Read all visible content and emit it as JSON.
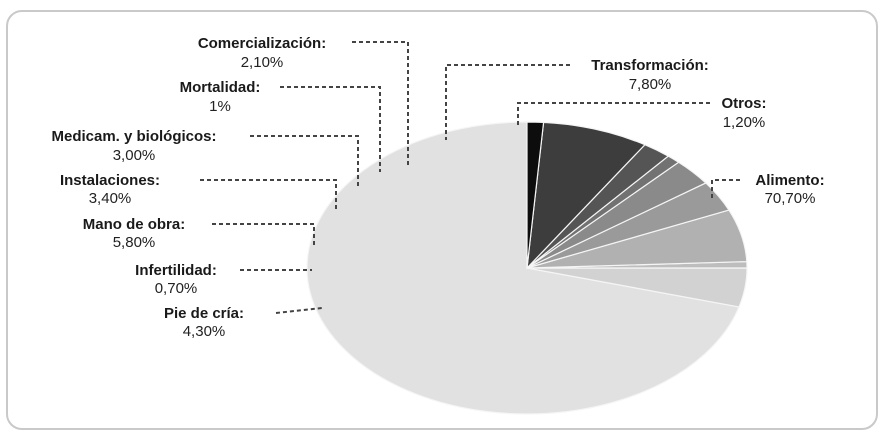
{
  "chart_data": {
    "type": "pie",
    "title": "",
    "start_angle_deg": -90,
    "direction": "counterclockwise",
    "slices": [
      {
        "name": "Alimento:",
        "value_label": "70,70%",
        "value": 70.7,
        "color": "#e1e1e1"
      },
      {
        "name": "Pie de cría:",
        "value_label": "4,30%",
        "value": 4.3,
        "color": "#d2d2d2"
      },
      {
        "name": "Infertilidad:",
        "value_label": "0,70%",
        "value": 0.7,
        "color": "#bdbdbd"
      },
      {
        "name": "Mano de obra:",
        "value_label": "5,80%",
        "value": 5.8,
        "color": "#b1b1b1"
      },
      {
        "name": "Instalaciones:",
        "value_label": "3,40%",
        "value": 3.4,
        "color": "#9a9a9a"
      },
      {
        "name": "Medicam. y biológicos:",
        "value_label": "3,00%",
        "value": 3.0,
        "color": "#8a8a8a"
      },
      {
        "name": "Mortalidad:",
        "value_label": "1%",
        "value": 1.0,
        "color": "#727272"
      },
      {
        "name": "Comercialización:",
        "value_label": "2,10%",
        "value": 2.1,
        "color": "#555555"
      },
      {
        "name": "Transformación:",
        "value_label": "7,80%",
        "value": 7.8,
        "color": "#3d3d3d"
      },
      {
        "name": "Otros:",
        "value_label": "1,20%",
        "value": 1.2,
        "color": "#0d0d0d"
      }
    ]
  }
}
